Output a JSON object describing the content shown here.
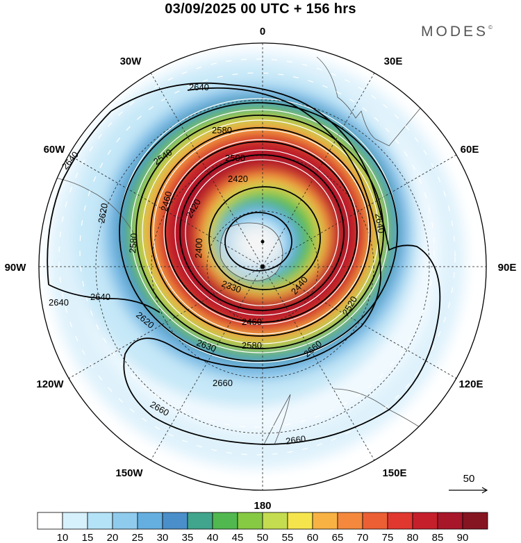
{
  "header": {
    "title": "03/09/2025  00 UTC  + 156 hrs",
    "brand": "MODES",
    "brand_mark": "©"
  },
  "map": {
    "projection": "south polar stereographic",
    "longitude_labels": {
      "top": "0",
      "bottom": "180",
      "w30": "30W",
      "w60": "60W",
      "w90": "90W",
      "w120": "120W",
      "w150": "150W",
      "e30": "30E",
      "e60": "60E",
      "e90": "90E",
      "e120": "120E",
      "e150": "150E"
    },
    "contour_labels": [
      "2640",
      "2640",
      "2640",
      "2640",
      "2620",
      "2620",
      "2580",
      "2580",
      "2540",
      "2500",
      "2460",
      "2420",
      "2420",
      "2400",
      "2330",
      "2440",
      "2460",
      "2520",
      "2580",
      "2630",
      "2660",
      "2660",
      "2660",
      "2660",
      "2640"
    ],
    "vector_reference": "50"
  },
  "colorbar": {
    "colors": [
      "#ffffff",
      "#d6f0fc",
      "#b4e2f7",
      "#8fcbed",
      "#65afe0",
      "#4a8fc9",
      "#40a58c",
      "#50b84f",
      "#86c943",
      "#c4dc4f",
      "#f6e44c",
      "#f8b244",
      "#f4883c",
      "#ec5f34",
      "#e0372f",
      "#c51f2b",
      "#a8162a",
      "#861522"
    ],
    "tick_labels": [
      "10",
      "15",
      "20",
      "25",
      "30",
      "35",
      "40",
      "45",
      "50",
      "55",
      "60",
      "65",
      "70",
      "75",
      "80",
      "85",
      "90"
    ]
  }
}
